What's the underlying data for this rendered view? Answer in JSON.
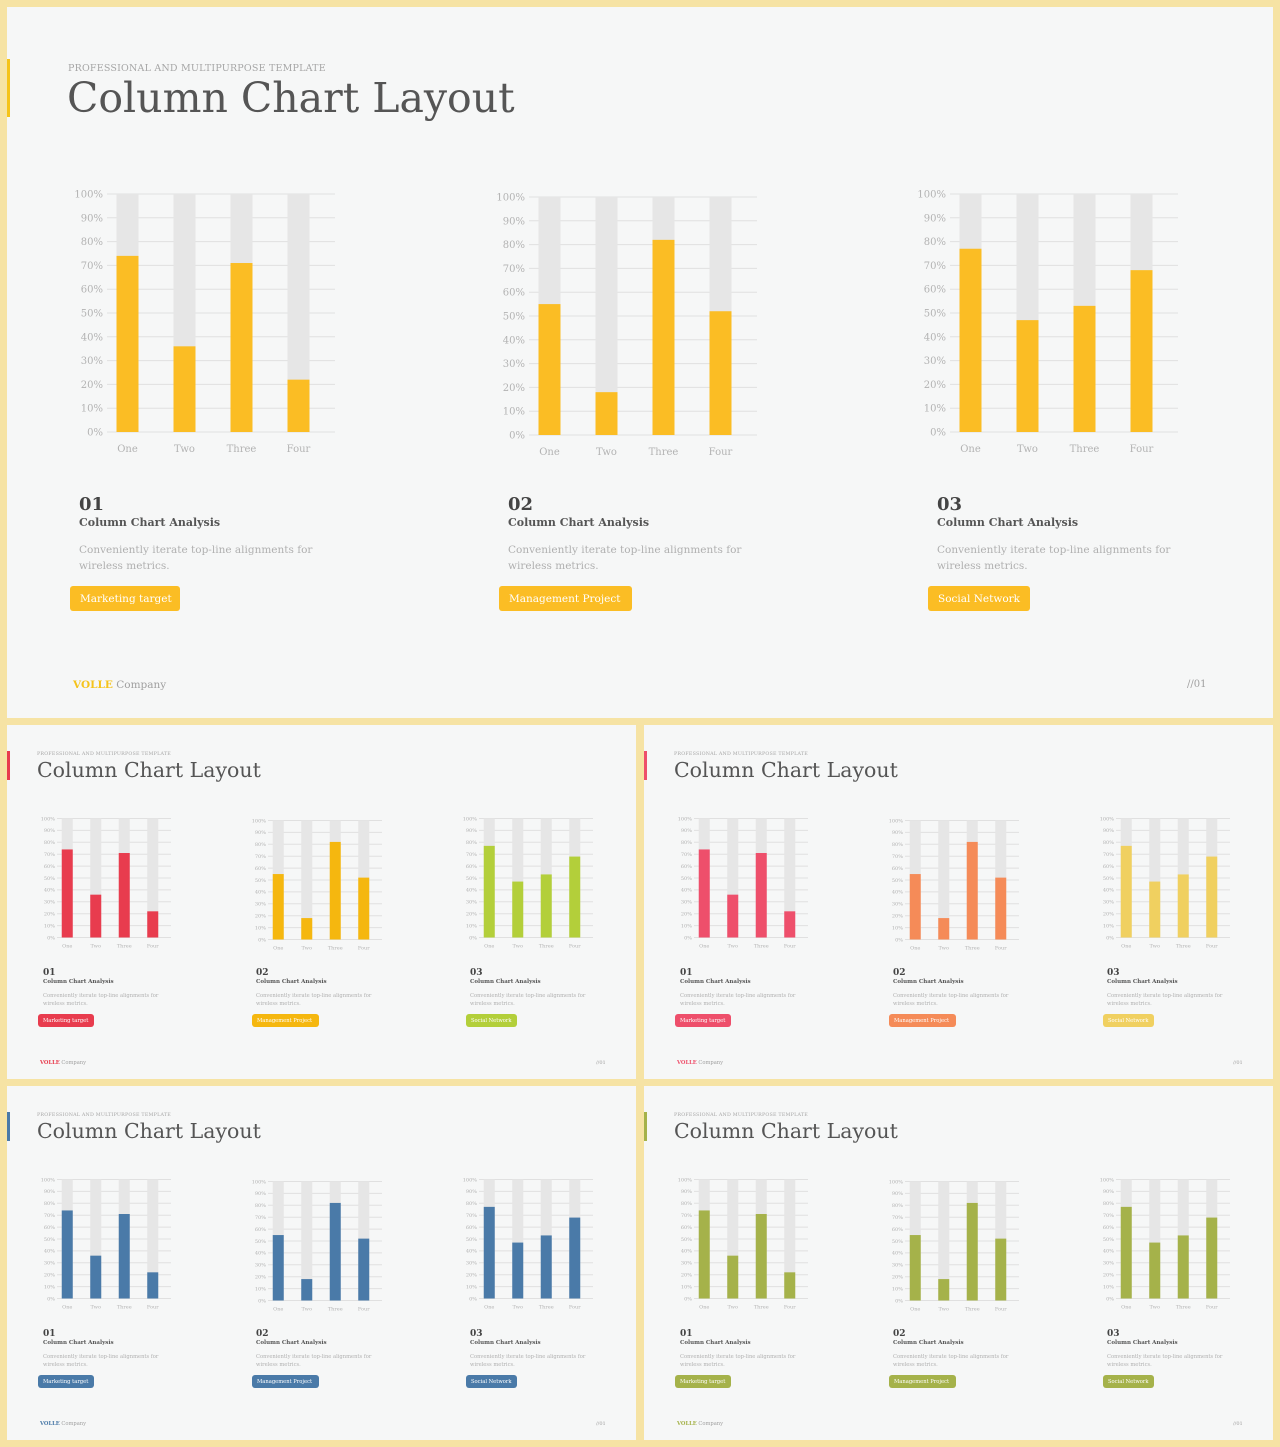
{
  "slides": [
    {
      "subtitle": "PROFESSIONAL AND MULTIPURPOSE  TEMPLATE",
      "title": "Column Chart Layout",
      "accent": "#f5c31a",
      "bar_colors": [
        "#fbbd24",
        "#fbbd24",
        "#fbbd24"
      ],
      "footer_brand": "VOLLE",
      "footer_company": "Company",
      "page": "//01"
    },
    {
      "subtitle": "PROFESSIONAL AND MULTIPURPOSE  TEMPLATE",
      "title": "Column Chart Layout",
      "accent": "#e83c4e",
      "bar_colors": [
        "#e83c4e",
        "#f5b70f",
        "#b3cf3a"
      ],
      "footer_brand": "VOLLE",
      "footer_company": "Company",
      "page": "//01"
    },
    {
      "subtitle": "PROFESSIONAL AND MULTIPURPOSE  TEMPLATE",
      "title": "Column Chart Layout",
      "accent": "#ee4f6b",
      "bar_colors": [
        "#ee4f6b",
        "#f58b58",
        "#f0d060"
      ],
      "footer_brand": "VOLLE",
      "footer_company": "Company",
      "page": "//01"
    },
    {
      "subtitle": "PROFESSIONAL AND MULTIPURPOSE  TEMPLATE",
      "title": "Column Chart Layout",
      "accent": "#4a7aa8",
      "bar_colors": [
        "#4a7aa8",
        "#4a7aa8",
        "#4a7aa8"
      ],
      "footer_brand": "VOLLE",
      "footer_company": "Company",
      "page": "//01"
    },
    {
      "subtitle": "PROFESSIONAL AND MULTIPURPOSE  TEMPLATE",
      "title": "Column Chart Layout",
      "accent": "#a5b24a",
      "bar_colors": [
        "#a5b24a",
        "#a5b24a",
        "#a5b24a"
      ],
      "footer_brand": "VOLLE",
      "footer_company": "Company",
      "page": "//01"
    }
  ],
  "panels": [
    {
      "number": "01",
      "heading": "Column Chart Analysis",
      "desc": "Conveniently iterate top-line alignments for wireless metrics.",
      "button": "Marketing target"
    },
    {
      "number": "02",
      "heading": "Column Chart Analysis",
      "desc": "Conveniently iterate top-line alignments for wireless metrics.",
      "button": "Management  Project"
    },
    {
      "number": "03",
      "heading": "Column Chart Analysis",
      "desc": "Conveniently iterate top-line alignments for wireless metrics.",
      "button": "Social Network"
    }
  ],
  "chart_data": [
    {
      "type": "bar",
      "categories": [
        "One",
        "Two",
        "Three",
        "Four"
      ],
      "values": [
        74,
        36,
        71,
        22
      ],
      "track_value": 100,
      "ylim": [
        0,
        100
      ],
      "yticks": [
        "0%",
        "10%",
        "20%",
        "30%",
        "40%",
        "50%",
        "60%",
        "70%",
        "80%",
        "90%",
        "100%"
      ],
      "grid": true
    },
    {
      "type": "bar",
      "categories": [
        "One",
        "Two",
        "Three",
        "Four"
      ],
      "values": [
        55,
        18,
        82,
        52
      ],
      "track_value": 100,
      "ylim": [
        0,
        100
      ],
      "yticks": [
        "0%",
        "10%",
        "20%",
        "30%",
        "40%",
        "50%",
        "60%",
        "70%",
        "80%",
        "90%",
        "100%"
      ],
      "grid": true
    },
    {
      "type": "bar",
      "categories": [
        "One",
        "Two",
        "Three",
        "Four"
      ],
      "values": [
        77,
        47,
        53,
        68
      ],
      "track_value": 100,
      "ylim": [
        0,
        100
      ],
      "yticks": [
        "0%",
        "10%",
        "20%",
        "30%",
        "40%",
        "50%",
        "60%",
        "70%",
        "80%",
        "90%",
        "100%"
      ],
      "grid": true
    }
  ]
}
